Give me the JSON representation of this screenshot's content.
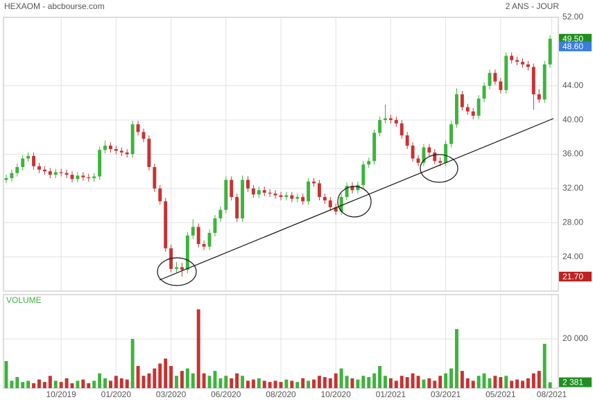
{
  "chart_data": [
    {
      "type": "candlestick",
      "title": "HEXAOM - abcbourse.com",
      "subtitle": "2 ANS - JOUR",
      "up_color": "#3cb43c",
      "down_color": "#c83232",
      "xlim": [
        -0.5,
        100.5
      ],
      "ylim": [
        20,
        52
      ],
      "yticks": [
        {
          "value": 24,
          "label": "24.00"
        },
        {
          "value": 28,
          "label": "28.00"
        },
        {
          "value": 32,
          "label": "32.00"
        },
        {
          "value": 36,
          "label": "36.00"
        },
        {
          "value": 40,
          "label": "40.00"
        },
        {
          "value": 44,
          "label": "44.00"
        },
        {
          "value": 52,
          "label": "52.00"
        }
      ],
      "grid": true,
      "open": [
        33.0,
        33.2,
        33.8,
        34.5,
        35.5,
        35.8,
        34.6,
        34.2,
        34.0,
        33.6,
        33.9,
        33.8,
        33.6,
        33.1,
        33.5,
        33.3,
        33.2,
        33.4,
        36.5,
        37.0,
        36.6,
        36.4,
        36.2,
        36.0,
        39.5,
        38.6,
        37.8,
        34.5,
        32.0,
        30.5,
        25.0,
        22.6,
        22.8,
        22.5,
        26.5,
        27.5,
        25.5,
        25.2,
        26.8,
        28.5,
        29.5,
        33.0,
        31.0,
        28.5,
        33.0,
        32.0,
        31.3,
        31.8,
        31.5,
        31.4,
        31.2,
        31.0,
        31.2,
        30.8,
        31.0,
        30.5,
        32.8,
        32.6,
        31.0,
        30.6,
        29.8,
        29.3,
        31.0,
        32.3,
        31.8,
        32.4,
        34.8,
        35.2,
        38.5,
        40.0,
        40.2,
        40.0,
        39.6,
        38.2,
        37.0,
        35.5,
        35.0,
        36.8,
        36.2,
        35.2,
        35.0,
        37.2,
        39.5,
        43.0,
        41.5,
        41.0,
        40.5,
        42.5,
        44.0,
        45.5,
        44.5,
        43.5,
        47.5,
        47.0,
        46.8,
        46.5,
        46.2,
        43.0,
        42.4,
        46.5
      ],
      "high": [
        33.6,
        34.2,
        34.9,
        35.9,
        36.2,
        36.2,
        35.0,
        34.6,
        34.4,
        34.3,
        34.3,
        34.2,
        34.0,
        33.9,
        33.9,
        33.7,
        33.8,
        36.9,
        37.6,
        37.4,
        37.0,
        36.8,
        36.6,
        39.9,
        39.9,
        39.0,
        38.2,
        34.9,
        32.4,
        30.9,
        25.4,
        23.4,
        23.3,
        26.9,
        28.4,
        27.9,
        25.9,
        27.2,
        28.9,
        29.9,
        33.4,
        33.4,
        31.4,
        33.5,
        33.4,
        32.4,
        32.2,
        32.2,
        31.9,
        31.8,
        31.6,
        31.6,
        31.6,
        31.4,
        31.4,
        33.2,
        33.2,
        33.0,
        31.4,
        31.0,
        30.2,
        31.4,
        32.7,
        32.7,
        32.8,
        35.2,
        35.6,
        38.9,
        40.4,
        41.8,
        40.6,
        40.4,
        40.0,
        38.6,
        37.4,
        35.9,
        37.2,
        37.2,
        36.6,
        35.6,
        37.6,
        39.9,
        43.7,
        43.4,
        41.9,
        41.4,
        42.9,
        44.4,
        45.9,
        45.9,
        44.9,
        47.9,
        47.9,
        47.4,
        47.2,
        46.9,
        46.6,
        43.6,
        46.9,
        49.9
      ],
      "low": [
        32.6,
        32.8,
        33.4,
        34.1,
        35.1,
        34.2,
        33.8,
        33.6,
        33.2,
        33.2,
        33.4,
        33.2,
        32.7,
        32.7,
        32.9,
        32.8,
        32.8,
        33.0,
        36.1,
        36.2,
        36.0,
        35.8,
        35.6,
        35.6,
        38.2,
        37.4,
        34.1,
        31.6,
        30.1,
        24.6,
        22.2,
        22.2,
        21.7,
        22.1,
        26.1,
        25.1,
        24.8,
        24.8,
        26.4,
        28.1,
        29.1,
        30.6,
        28.1,
        28.1,
        31.6,
        30.9,
        30.9,
        31.1,
        31.0,
        30.8,
        30.6,
        30.6,
        30.4,
        30.4,
        30.1,
        30.1,
        32.2,
        30.6,
        30.2,
        29.4,
        28.9,
        28.9,
        30.6,
        31.4,
        31.4,
        32.0,
        34.4,
        34.8,
        38.1,
        39.6,
        39.6,
        39.2,
        37.8,
        36.6,
        35.1,
        34.6,
        34.6,
        35.8,
        34.8,
        34.6,
        34.6,
        36.8,
        39.1,
        41.1,
        40.6,
        40.1,
        40.1,
        42.1,
        43.6,
        44.1,
        43.1,
        43.1,
        46.6,
        46.4,
        46.1,
        45.8,
        41.2,
        42.0,
        42.0,
        46.1
      ],
      "close": [
        33.2,
        33.8,
        34.5,
        35.5,
        35.8,
        34.6,
        34.2,
        34.0,
        33.6,
        33.9,
        33.8,
        33.6,
        33.1,
        33.5,
        33.3,
        33.2,
        33.4,
        36.5,
        37.0,
        36.6,
        36.4,
        36.2,
        36.0,
        39.5,
        38.6,
        37.8,
        34.5,
        32.0,
        30.5,
        25.0,
        22.6,
        22.8,
        22.5,
        26.5,
        27.5,
        25.5,
        25.2,
        26.8,
        28.5,
        29.5,
        33.0,
        31.0,
        28.5,
        33.0,
        32.0,
        31.3,
        31.8,
        31.5,
        31.4,
        31.2,
        31.0,
        31.2,
        30.8,
        31.0,
        30.5,
        32.8,
        32.6,
        31.0,
        30.6,
        29.8,
        29.3,
        31.0,
        32.3,
        31.8,
        32.4,
        34.8,
        35.2,
        38.5,
        40.0,
        40.2,
        40.0,
        39.6,
        38.2,
        37.0,
        35.5,
        35.0,
        36.8,
        36.2,
        35.2,
        35.0,
        37.2,
        39.5,
        43.0,
        41.5,
        41.0,
        40.5,
        42.5,
        44.0,
        45.5,
        44.5,
        43.5,
        47.5,
        47.0,
        46.8,
        46.5,
        46.2,
        43.0,
        42.4,
        46.5,
        49.5
      ],
      "badges": [
        {
          "value": 49.5,
          "label": "49.50",
          "color": "#1f8f1f"
        },
        {
          "value": 48.6,
          "label": "48.60",
          "color": "#3b7de0"
        },
        {
          "value": 21.7,
          "label": "21.70",
          "color": "#c02222"
        }
      ]
    },
    {
      "type": "bar",
      "title": "VOLUME",
      "up_color": "#3cb43c",
      "down_color": "#c83232",
      "xlim": [
        -0.5,
        100.5
      ],
      "ylim": [
        0,
        38000
      ],
      "yticks": [
        {
          "value": 20000,
          "label": "20 000"
        }
      ],
      "xticks": [
        {
          "value": 10,
          "label": "10/2019"
        },
        {
          "value": 20,
          "label": "01/2020"
        },
        {
          "value": 30,
          "label": "03/2020"
        },
        {
          "value": 40,
          "label": "06/2020"
        },
        {
          "value": 50,
          "label": "08/2020"
        },
        {
          "value": 60,
          "label": "10/2020"
        },
        {
          "value": 70,
          "label": "01/2021"
        },
        {
          "value": 80,
          "label": "03/2021"
        },
        {
          "value": 90,
          "label": "05/2021"
        },
        {
          "value": 99.3,
          "label": "08/2021"
        }
      ],
      "grid": true,
      "values": [
        11000,
        3000,
        4500,
        2500,
        3000,
        2000,
        3500,
        2500,
        5000,
        3000,
        2500,
        4000,
        2000,
        3000,
        3500,
        2000,
        3000,
        6000,
        4000,
        3000,
        5000,
        4000,
        3500,
        20000,
        9000,
        5000,
        6000,
        8000,
        10000,
        12000,
        9000,
        5000,
        7000,
        8000,
        6000,
        32000,
        6000,
        5000,
        7000,
        4000,
        5000,
        4000,
        6000,
        5000,
        3000,
        3500,
        4000,
        3000,
        2500,
        3000,
        2500,
        3500,
        3000,
        2500,
        4000,
        3000,
        3500,
        5000,
        4500,
        4000,
        6000,
        8000,
        5000,
        4000,
        3500,
        5000,
        4500,
        6000,
        9000,
        5000,
        4000,
        3000,
        5000,
        4500,
        6000,
        5000,
        3500,
        4000,
        3000,
        5000,
        6000,
        8000,
        24000,
        7000,
        4000,
        3000,
        5000,
        6000,
        4000,
        5000,
        4500,
        5000,
        3000,
        3500,
        3000,
        4000,
        6000,
        7000,
        18000,
        2381
      ],
      "badges": [
        {
          "value": 2381,
          "label": "2 381",
          "color": "#1f8f1f"
        }
      ]
    }
  ]
}
